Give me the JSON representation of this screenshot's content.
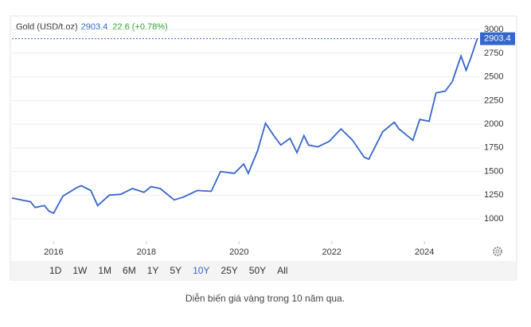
{
  "chart_data": {
    "type": "line",
    "title": "Gold (USD/t.oz)",
    "last_value": 2903.4,
    "change": "22.6 (+0.78%)",
    "x": [
      2015.1,
      2015.3,
      2015.5,
      2015.6,
      2015.8,
      2015.9,
      2016.0,
      2016.2,
      2016.5,
      2016.6,
      2016.8,
      2016.95,
      2017.2,
      2017.45,
      2017.7,
      2017.95,
      2018.1,
      2018.3,
      2018.6,
      2018.8,
      2019.1,
      2019.4,
      2019.6,
      2019.9,
      2020.1,
      2020.2,
      2020.4,
      2020.57,
      2020.75,
      2020.9,
      2021.1,
      2021.25,
      2021.4,
      2021.5,
      2021.7,
      2021.95,
      2022.2,
      2022.45,
      2022.7,
      2022.8,
      2023.1,
      2023.35,
      2023.45,
      2023.75,
      2023.9,
      2024.1,
      2024.25,
      2024.45,
      2024.6,
      2024.79,
      2024.9,
      2025.0,
      2025.14
    ],
    "series": [
      {
        "name": "Gold",
        "color": "#3566cc",
        "values": [
          1220,
          1200,
          1180,
          1120,
          1140,
          1080,
          1060,
          1240,
          1330,
          1350,
          1300,
          1140,
          1250,
          1260,
          1320,
          1280,
          1340,
          1320,
          1200,
          1230,
          1300,
          1290,
          1500,
          1480,
          1580,
          1480,
          1720,
          2010,
          1880,
          1780,
          1850,
          1700,
          1880,
          1780,
          1760,
          1820,
          1950,
          1830,
          1650,
          1630,
          1920,
          2020,
          1950,
          1830,
          2050,
          2030,
          2330,
          2350,
          2450,
          2720,
          2570,
          2700,
          2903.4
        ]
      }
    ],
    "xlim": [
      2015.1,
      2025.2
    ],
    "xticks": [
      2016,
      2018,
      2020,
      2022,
      2024
    ],
    "ylim": [
      765,
      3060
    ],
    "yticks": [
      1000,
      1250,
      1500,
      1750,
      2000,
      2250,
      2500,
      2750,
      3000
    ],
    "grid": true,
    "ranges": [
      "1D",
      "1W",
      "1M",
      "6M",
      "1Y",
      "5Y",
      "10Y",
      "25Y",
      "50Y",
      "All"
    ],
    "active_range": "10Y",
    "caption": "Diễn biến giá vàng trong 10 năm qua."
  }
}
